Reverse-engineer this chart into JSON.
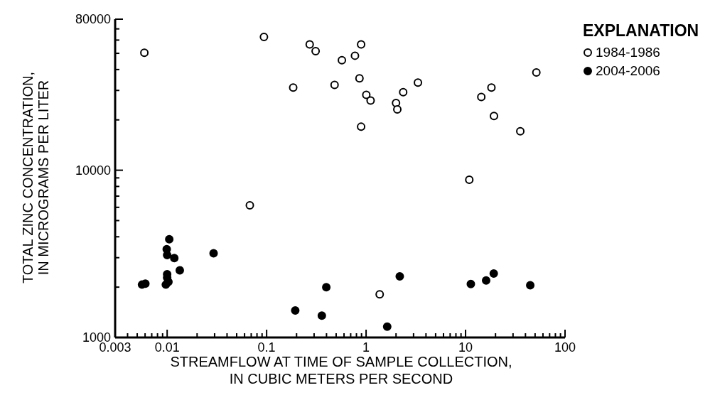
{
  "chart_data": {
    "type": "scatter",
    "xlabel": "STREAMFLOW AT TIME OF SAMPLE COLLECTION,\nIN CUBIC METERS PER SECOND",
    "ylabel": "TOTAL ZINC CONCENTRATION,\nIN MICROGRAMS PER LITER",
    "legend_title": "EXPLANATION",
    "legend": "top right",
    "log": "xy",
    "marker": "circle",
    "xlim": [
      0.003,
      100
    ],
    "ylim": [
      1000,
      80000
    ],
    "xticks": [
      0.003,
      {
        "value": 0.004,
        "label": null
      },
      {
        "value": 0.005,
        "label": null
      },
      {
        "value": 0.006,
        "label": null
      },
      {
        "value": 0.007,
        "label": null
      },
      {
        "value": 0.008,
        "label": null
      },
      {
        "value": 0.009,
        "label": null
      },
      0.01,
      {
        "value": 0.02,
        "label": null
      },
      {
        "value": 0.03,
        "label": null
      },
      {
        "value": 0.04,
        "label": null
      },
      {
        "value": 0.05,
        "label": null
      },
      {
        "value": 0.06,
        "label": null
      },
      {
        "value": 0.07,
        "label": null
      },
      {
        "value": 0.08,
        "label": null
      },
      {
        "value": 0.09,
        "label": null
      },
      0.1,
      {
        "value": 0.2,
        "label": null
      },
      {
        "value": 0.3,
        "label": null
      },
      {
        "value": 0.4,
        "label": null
      },
      {
        "value": 0.5,
        "label": null
      },
      {
        "value": 0.6,
        "label": null
      },
      {
        "value": 0.7,
        "label": null
      },
      {
        "value": 0.8,
        "label": null
      },
      {
        "value": 0.9,
        "label": null
      },
      1,
      {
        "value": 2,
        "label": null
      },
      {
        "value": 3,
        "label": null
      },
      {
        "value": 4,
        "label": null
      },
      {
        "value": 5,
        "label": null
      },
      {
        "value": 6,
        "label": null
      },
      {
        "value": 7,
        "label": null
      },
      {
        "value": 8,
        "label": null
      },
      {
        "value": 9,
        "label": null
      },
      10,
      {
        "value": 20,
        "label": null
      },
      {
        "value": 30,
        "label": null
      },
      {
        "value": 40,
        "label": null
      },
      {
        "value": 50,
        "label": null
      },
      {
        "value": 60,
        "label": null
      },
      {
        "value": 70,
        "label": null
      },
      {
        "value": 80,
        "label": null
      },
      {
        "value": 90,
        "label": null
      },
      100
    ],
    "yticks": [
      1000,
      {
        "value": 2000,
        "label": null
      },
      {
        "value": 3000,
        "label": null
      },
      {
        "value": 4000,
        "label": null
      },
      {
        "value": 5000,
        "label": null
      },
      {
        "value": 6000,
        "label": null
      },
      {
        "value": 7000,
        "label": null
      },
      {
        "value": 8000,
        "label": null
      },
      {
        "value": 9000,
        "label": null
      },
      10000,
      {
        "value": 20000,
        "label": null
      },
      {
        "value": 30000,
        "label": null
      },
      {
        "value": 40000,
        "label": null
      },
      {
        "value": 50000,
        "label": null
      },
      {
        "value": 60000,
        "label": null
      },
      {
        "value": 70000,
        "label": null
      },
      80000
    ],
    "series": [
      {
        "name": "1984-1986",
        "color": "#000000",
        "x": [
          0.0059,
          0.094,
          0.271,
          0.311,
          0.185,
          0.482,
          0.0678,
          0.571,
          0.773,
          0.891,
          0.858,
          1.005,
          1.11,
          0.891,
          2.0,
          2.06,
          2.36,
          3.32,
          10.9,
          14.4,
          18.2,
          19.3,
          35.5,
          51.5,
          1.37
        ],
        "values": [
          50400,
          62700,
          56500,
          51500,
          31200,
          32400,
          6170,
          45500,
          48400,
          56500,
          35400,
          28200,
          26100,
          18200,
          25200,
          23100,
          29300,
          33400,
          8780,
          27400,
          31200,
          21100,
          17100,
          38400,
          1810
        ]
      },
      {
        "name": "2004-2006",
        "color": "#000000",
        "x": [
          0.00559,
          0.00604,
          0.0097,
          0.0103,
          0.01,
          0.01,
          0.0099,
          0.01,
          0.0105,
          0.0118,
          0.0134,
          0.0293,
          0.194,
          0.359,
          0.398,
          1.63,
          2.18,
          11.3,
          16.1,
          19.2,
          44.7
        ],
        "values": [
          2070,
          2100,
          2070,
          2150,
          2390,
          2280,
          3370,
          3110,
          3870,
          2980,
          2520,
          3190,
          1450,
          1350,
          2000,
          1160,
          2320,
          2090,
          2190,
          2410,
          2050
        ]
      }
    ]
  }
}
